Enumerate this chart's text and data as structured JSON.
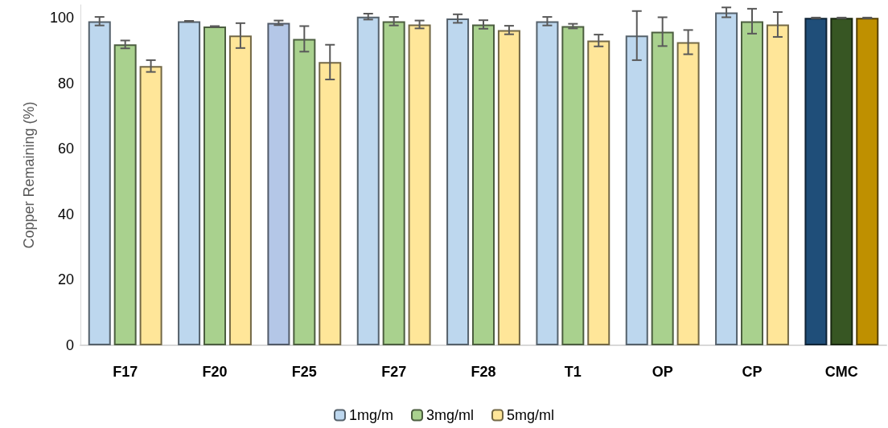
{
  "chart_data": {
    "type": "bar",
    "ylabel": "Copper Remaining (%)",
    "categories": [
      "F17",
      "F20",
      "F25",
      "F27",
      "F28",
      "T1",
      "OP",
      "CP",
      "CMC"
    ],
    "series": [
      {
        "name": "1mg/m",
        "color": "#bdd7ee",
        "colors": [
          "#bdd7ee",
          "#bdd7ee",
          "#b4c7e7",
          "#bdd7ee",
          "#bdd7ee",
          "#bdd7ee",
          "#bdd7ee",
          "#bdd7ee",
          "#1f4e79"
        ],
        "values": [
          99.0,
          99.0,
          98.5,
          100.4,
          99.8,
          99.0,
          94.6,
          101.7,
          100
        ],
        "errors": [
          1.3,
          0.1,
          0.7,
          0.9,
          1.3,
          1.3,
          7.5,
          1.5,
          0.1
        ]
      },
      {
        "name": "3mg/ml",
        "color": "#a9d18e",
        "colors": [
          "#a9d18e",
          "#a9d18e",
          "#a9d18e",
          "#a9d18e",
          "#a9d18e",
          "#a9d18e",
          "#a9d18e",
          "#a9d18e",
          "#375623"
        ],
        "values": [
          91.9,
          97.4,
          93.6,
          99.0,
          98.0,
          97.5,
          95.8,
          99.0,
          100
        ],
        "errors": [
          1.2,
          0.1,
          3.9,
          1.3,
          1.3,
          0.7,
          4.4,
          3.8,
          0.1
        ]
      },
      {
        "name": "5mg/ml",
        "color": "#ffe699",
        "colors": [
          "#ffe699",
          "#ffe699",
          "#ffe699",
          "#ffe699",
          "#ffe699",
          "#ffe699",
          "#ffe699",
          "#ffe699",
          "#bf9000"
        ],
        "values": [
          85.3,
          94.6,
          86.5,
          98.0,
          96.3,
          93.1,
          92.6,
          98.0,
          100
        ],
        "errors": [
          1.8,
          3.8,
          5.3,
          1.2,
          1.3,
          1.8,
          3.7,
          3.8,
          0.1
        ]
      }
    ],
    "ylim": [
      0,
      104
    ],
    "yticks": [
      0,
      20,
      40,
      60,
      80,
      100
    ],
    "grid": false,
    "legend": "bottom"
  }
}
